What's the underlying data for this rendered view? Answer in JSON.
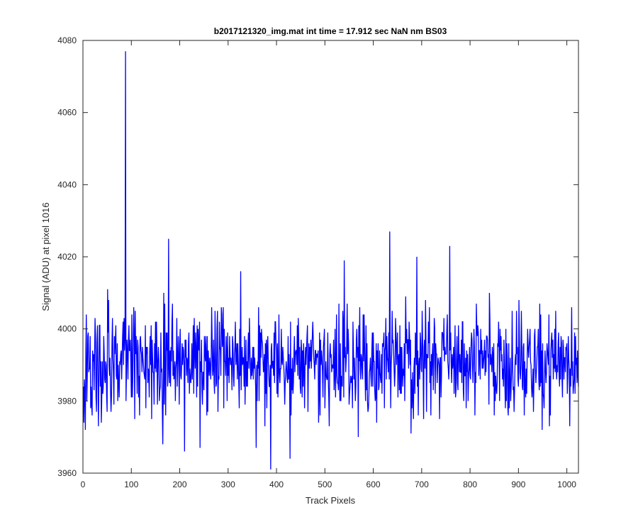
{
  "chart_data": {
    "type": "line",
    "title": "b2017121320_img.mat int time = 17.912 sec  NaN nm BS03",
    "xlabel": "Track Pixels",
    "ylabel": "Signal (ADU) at pixel 1016",
    "xlim": [
      0,
      1024
    ],
    "ylim": [
      3960,
      4080
    ],
    "xticks": [
      0,
      100,
      200,
      300,
      400,
      500,
      600,
      700,
      800,
      900,
      1000
    ],
    "yticks": [
      3960,
      3980,
      4000,
      4020,
      4040,
      4060,
      4080
    ],
    "xtick_labels": [
      "0",
      "100",
      "200",
      "300",
      "400",
      "500",
      "600",
      "700",
      "800",
      "900",
      "1000"
    ],
    "ytick_labels": [
      "3960",
      "3980",
      "4000",
      "4020",
      "4040",
      "4060",
      "4080"
    ],
    "grid": false,
    "legend": "none",
    "line_color": "#0000ff",
    "series": [
      {
        "x_start": 1,
        "x_step": 1,
        "count": 1024,
        "mean_approx": 3991,
        "min_approx": 3961,
        "max_approx": 4077,
        "values": [],
        "notable_points": [
          {
            "x": 5,
            "y": 3972
          },
          {
            "x": 32,
            "y": 3973
          },
          {
            "x": 51,
            "y": 4011
          },
          {
            "x": 88,
            "y": 4077
          },
          {
            "x": 177,
            "y": 4025
          },
          {
            "x": 165,
            "y": 3968
          },
          {
            "x": 210,
            "y": 3966
          },
          {
            "x": 242,
            "y": 3967
          },
          {
            "x": 326,
            "y": 4016
          },
          {
            "x": 358,
            "y": 3967
          },
          {
            "x": 388,
            "y": 3961
          },
          {
            "x": 428,
            "y": 3964
          },
          {
            "x": 540,
            "y": 4019
          },
          {
            "x": 569,
            "y": 3970
          },
          {
            "x": 634,
            "y": 4027
          },
          {
            "x": 678,
            "y": 3971
          },
          {
            "x": 690,
            "y": 4020
          },
          {
            "x": 758,
            "y": 4023
          },
          {
            "x": 840,
            "y": 4010
          },
          {
            "x": 1006,
            "y": 3973
          },
          {
            "x": 1010,
            "y": 4006
          }
        ]
      }
    ]
  }
}
